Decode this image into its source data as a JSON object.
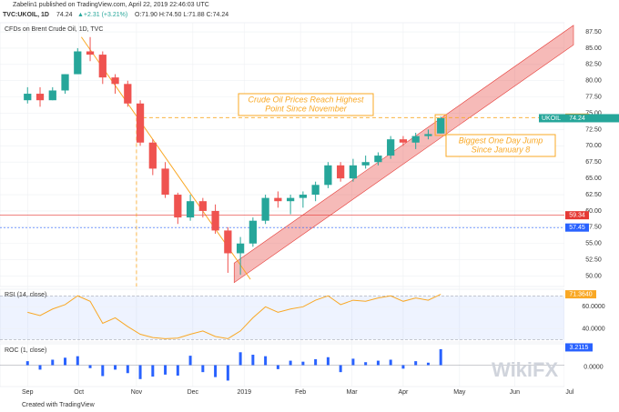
{
  "header": {
    "publisher": "Zabelin1 published on TradingView.com, April 22, 2019 22:46:03 UTC",
    "symbol": "TVC:UKOIL, 1D",
    "last": "74.24",
    "change": "▲+2.31 (+3.21%)",
    "ohlc": "O:71.90 H:74.50 L:71.88 C:74.24"
  },
  "chart_data": [
    {
      "type": "candlestick",
      "title": "CFDs on Brent Crude Oil, 1D, TVC",
      "x": [
        0,
        1,
        2,
        3,
        4,
        5,
        6,
        7,
        8,
        9,
        10,
        11,
        12,
        13,
        14,
        15,
        16,
        17,
        18,
        19,
        20,
        21,
        22,
        23,
        24,
        25,
        26,
        27,
        28,
        29,
        30,
        31,
        32,
        33
      ],
      "open": [
        77,
        78,
        77,
        78.5,
        81,
        84.5,
        84,
        80.5,
        79.5,
        76.5,
        70.5,
        66.5,
        62.5,
        59,
        61.5,
        60,
        57,
        53.5,
        55,
        58.5,
        62,
        61.5,
        62,
        62.5,
        64,
        67,
        65,
        67,
        67.5,
        68.5,
        71,
        70.5,
        71.5,
        71.9
      ],
      "high": [
        79,
        79,
        79,
        81,
        85,
        86.7,
        84.5,
        81,
        80,
        77,
        71,
        67.5,
        62.8,
        62.5,
        62,
        61,
        57.5,
        56,
        59,
        62.5,
        63,
        62.5,
        63,
        64.5,
        67.5,
        67.5,
        68,
        68.5,
        69,
        71.5,
        71.5,
        72,
        72.5,
        74.5
      ],
      "low": [
        76.5,
        76,
        77,
        78,
        81,
        83,
        79.5,
        78,
        76,
        70,
        65.5,
        62,
        58,
        58.5,
        59,
        56.5,
        50.5,
        50.2,
        54.5,
        58,
        60.5,
        59.5,
        60.5,
        61.5,
        63.5,
        64.5,
        64.5,
        66.5,
        67,
        68,
        70,
        69.5,
        71,
        71.88
      ],
      "close": [
        78,
        77,
        78.5,
        81,
        84.5,
        84,
        80.5,
        79.5,
        76.5,
        70.5,
        66.5,
        62.5,
        59,
        61.5,
        60,
        57,
        53.5,
        55,
        58.5,
        62,
        61.5,
        62,
        62.5,
        64,
        67,
        65,
        67,
        67.5,
        68.5,
        71,
        70.5,
        71.5,
        71.8,
        74.24
      ],
      "up_color": "#26a69a",
      "down_color": "#ef5350",
      "xlim": [
        -2.2,
        43.6
      ],
      "xticks": [
        {
          "value": 0,
          "label": "Sep"
        },
        {
          "value": 4.1,
          "label": "Oct"
        },
        {
          "value": 8.7,
          "label": "Nov"
        },
        {
          "value": 13.2,
          "label": "Dec"
        },
        {
          "value": 17.3,
          "label": "2019"
        },
        {
          "value": 21.8,
          "label": "Feb"
        },
        {
          "value": 25.9,
          "label": "Mar"
        },
        {
          "value": 30,
          "label": "Apr"
        },
        {
          "value": 34.5,
          "label": "May"
        },
        {
          "value": 38.9,
          "label": "Jun"
        },
        {
          "value": 43.3,
          "label": "Jul"
        }
      ],
      "ylim": [
        48.4,
        88.9
      ],
      "yticks": [
        {
          "value": 50,
          "label": "50.00"
        },
        {
          "value": 52.5,
          "label": "52.50"
        },
        {
          "value": 55,
          "label": "55.00"
        },
        {
          "value": 57.5,
          "label": "57.50"
        },
        {
          "value": 60,
          "label": "60.00"
        },
        {
          "value": 62.5,
          "label": "62.50"
        },
        {
          "value": 65,
          "label": "65.00"
        },
        {
          "value": 67.5,
          "label": "67.50"
        },
        {
          "value": 70,
          "label": "70.00"
        },
        {
          "value": 72.5,
          "label": "72.50"
        },
        {
          "value": 75,
          "label": "75.00"
        },
        {
          "value": 77.5,
          "label": "77.50"
        },
        {
          "value": 80,
          "label": "80.00"
        },
        {
          "value": 82.5,
          "label": "82.50"
        },
        {
          "value": 85,
          "label": "85.00"
        },
        {
          "value": 87.5,
          "label": "87.50"
        }
      ],
      "levels": [
        {
          "value": 59.34,
          "color": "#e53935"
        },
        {
          "value": 57.45,
          "color": "#2962ff"
        },
        {
          "value": 74.33,
          "color": "#f9a825"
        }
      ],
      "highlight_x": 8.7,
      "last_label": "UKOIL",
      "trendline": {
        "x": [
          4.3,
          17.8
        ],
        "y": [
          86.7,
          49.5
        ],
        "color": "#f9a825"
      },
      "channel": {
        "x": [
          16.5,
          43.6
        ],
        "y": [
          50.5,
          87
        ],
        "width": 3,
        "color": "#e53935"
      },
      "annotations": [
        "Crude Oil Prices Reach Highest",
        "Point Since November",
        "Biggest One Day Jump",
        "Since January 8"
      ]
    },
    {
      "type": "line",
      "title": "RSI (14, close)",
      "color": "#f9a825",
      "x": [
        0,
        1,
        2,
        3,
        4,
        5,
        6,
        7,
        8,
        9,
        10,
        11,
        12,
        13,
        14,
        15,
        16,
        17,
        18,
        19,
        20,
        21,
        22,
        23,
        24,
        25,
        26,
        27,
        28,
        29,
        30,
        31,
        32,
        33
      ],
      "values": [
        55,
        52,
        58,
        62,
        70,
        65,
        45,
        50,
        42,
        35,
        32,
        31,
        31.5,
        35,
        38,
        33,
        31,
        38,
        50,
        60,
        55,
        58,
        60,
        66,
        70,
        62,
        66,
        65,
        68,
        70,
        65,
        68,
        66,
        71.364
      ],
      "last_value_label": "71.3640",
      "ylim": [
        28,
        76
      ],
      "bands": [
        30,
        70
      ],
      "yticks": [
        {
          "value": 60,
          "label": "60.0000"
        },
        {
          "value": 40,
          "label": "40.0000"
        }
      ]
    },
    {
      "type": "bar",
      "title": "ROC (1, close)",
      "color": "#2962ff",
      "x": [
        0,
        1,
        2,
        3,
        4,
        5,
        6,
        7,
        8,
        9,
        10,
        11,
        12,
        13,
        14,
        15,
        16,
        17,
        18,
        19,
        20,
        21,
        22,
        23,
        24,
        25,
        26,
        27,
        28,
        29,
        30,
        31,
        32,
        33
      ],
      "values": [
        0.8,
        -0.9,
        1.1,
        1.5,
        1.8,
        -0.6,
        -2.2,
        -0.9,
        -1.6,
        -2.8,
        -2.3,
        -1.9,
        -2.1,
        1.9,
        -1.4,
        -2.4,
        -3.1,
        2.6,
        2.1,
        1.8,
        -0.8,
        0.9,
        0.7,
        1.2,
        1.6,
        -1.4,
        1.3,
        0.6,
        0.9,
        1.1,
        -0.7,
        0.8,
        0.5,
        3.2115
      ],
      "ylim": [
        -4.3,
        4.3
      ],
      "yticks": [
        {
          "value": 0,
          "label": "0.0000"
        }
      ]
    }
  ],
  "footer": "Created with TradingView",
  "watermark": "WikiFX"
}
